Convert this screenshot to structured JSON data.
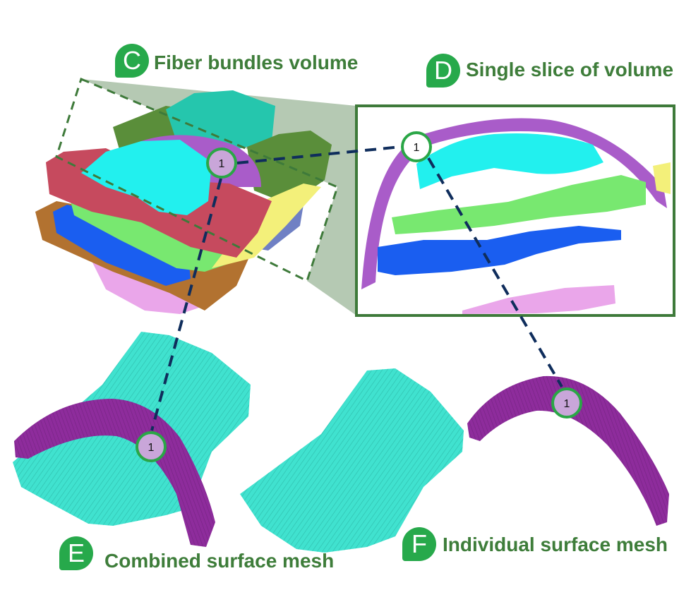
{
  "panels": {
    "C": {
      "letter": "C",
      "title": "Fiber bundles volume"
    },
    "D": {
      "letter": "D",
      "title": "Single slice of  volume"
    },
    "E": {
      "letter": "E",
      "title": "Combined surface mesh"
    },
    "F": {
      "letter": "F",
      "title": "Individual surface mesh"
    }
  },
  "marker": {
    "label": "1"
  },
  "colors": {
    "badge": "#27a94b",
    "title": "#3e7d3a",
    "frame": "#3e7a3a",
    "connector": "#0f2d5c",
    "marker_fill": "#c9a6d9",
    "marker_ring": "#2aa646",
    "bundle_purple": "#a95cc9",
    "bundle_cyan": "#22f0ee",
    "bundle_green": "#78e870",
    "bundle_blue": "#1a5ef0",
    "bundle_pink": "#eaa6ea",
    "bundle_yellow": "#f3f07a",
    "bundle_red": "#c64a5e",
    "bundle_brown": "#b27230",
    "bundle_teal": "#25c6ad",
    "bundle_olive": "#5a8e3a",
    "bundle_slate": "#6f80c4",
    "mesh_teal": "#40e2cf",
    "mesh_purple": "#8e2c9c"
  }
}
